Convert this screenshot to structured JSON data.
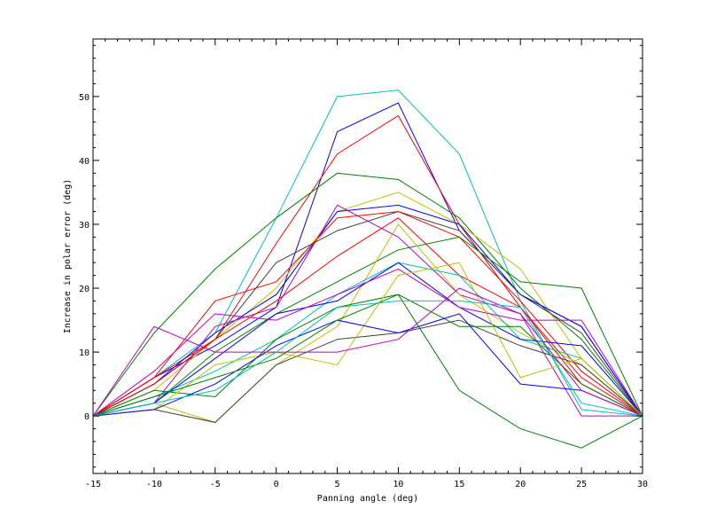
{
  "chart_data": {
    "type": "line",
    "title": "",
    "xlabel": "Panning angle (deg)",
    "ylabel": "Increase in polar error (deg)",
    "xlim": [
      -15,
      30
    ],
    "ylim": [
      -9,
      59
    ],
    "x": [
      -15,
      -10,
      -5,
      0,
      5,
      10,
      15,
      20,
      25,
      30
    ],
    "x_ticks": [
      -15,
      -10,
      -5,
      0,
      5,
      10,
      15,
      20,
      25,
      30
    ],
    "y_ticks": [
      0,
      10,
      20,
      30,
      40,
      50
    ],
    "grid": false,
    "legend": "none",
    "series": [
      {
        "color": "#00c0c0",
        "values": [
          0,
          6,
          13,
          31,
          50,
          51,
          41,
          18,
          1,
          0
        ]
      },
      {
        "color": "#0000ff",
        "values": [
          0,
          6,
          11,
          17,
          44.5,
          49,
          29,
          19,
          14,
          0
        ]
      },
      {
        "color": "#ff0000",
        "values": [
          0,
          6,
          12,
          27,
          41,
          47,
          30,
          17,
          6,
          0
        ]
      },
      {
        "color": "#008000",
        "values": [
          0,
          13,
          23,
          31,
          38,
          37,
          31,
          20,
          12,
          0
        ]
      },
      {
        "color": "#c0c000",
        "values": [
          0,
          4,
          12,
          20,
          32,
          35,
          30,
          23,
          9,
          0
        ]
      },
      {
        "color": "#0000ff",
        "values": [
          0,
          5,
          13,
          19,
          32,
          33,
          30,
          19,
          14,
          0
        ]
      },
      {
        "color": "#c000c0",
        "values": [
          0,
          2,
          14,
          17,
          33,
          28,
          19,
          16,
          0,
          0
        ]
      },
      {
        "color": "#404040",
        "values": [
          0,
          5,
          12,
          24,
          29,
          32,
          29,
          19,
          13,
          0
        ]
      },
      {
        "color": "#ff0000",
        "values": [
          0,
          6,
          18,
          21,
          31,
          32,
          28,
          18,
          7,
          0
        ]
      },
      {
        "color": "#008000",
        "values": [
          0,
          2,
          10,
          16,
          21,
          26,
          28,
          21,
          20,
          0
        ]
      },
      {
        "color": "#c0c000",
        "values": [
          0,
          2,
          -1,
          8,
          14,
          30,
          19,
          13,
          8,
          0
        ]
      },
      {
        "color": "#ff0000",
        "values": [
          0,
          5,
          12,
          18,
          25,
          31,
          22,
          17,
          5,
          0
        ]
      },
      {
        "color": "#00c0c0",
        "values": [
          0,
          3,
          7,
          12,
          19,
          24,
          22,
          12,
          9,
          0
        ]
      },
      {
        "color": "#0000ff",
        "values": [
          0,
          2,
          9,
          16,
          18,
          24,
          17,
          12,
          11,
          0
        ]
      },
      {
        "color": "#008000",
        "values": [
          0,
          4,
          3,
          12,
          17,
          19,
          14,
          14,
          5,
          0
        ]
      },
      {
        "color": "#c000c0",
        "values": [
          0,
          7,
          16,
          15,
          19,
          23,
          17,
          15,
          15,
          0
        ]
      },
      {
        "color": "#404040",
        "values": [
          0,
          1,
          -1,
          8,
          12,
          13,
          15,
          11,
          8,
          0
        ]
      },
      {
        "color": "#c0c000",
        "values": [
          0,
          1,
          8,
          10,
          8,
          22,
          24,
          6,
          9,
          0
        ]
      },
      {
        "color": "#0000ff",
        "values": [
          0,
          1,
          5,
          11,
          15,
          13,
          16,
          5,
          4,
          0
        ]
      },
      {
        "color": "#c000c0",
        "values": [
          0,
          14,
          10,
          10,
          10,
          12,
          20,
          16,
          4,
          0
        ]
      },
      {
        "color": "#008000",
        "values": [
          0,
          3,
          6,
          9,
          15,
          19,
          4,
          -2,
          -5,
          0
        ]
      },
      {
        "color": "#00c0c0",
        "values": [
          0,
          2,
          4,
          10,
          17,
          18,
          18,
          17,
          2,
          0
        ]
      }
    ]
  }
}
